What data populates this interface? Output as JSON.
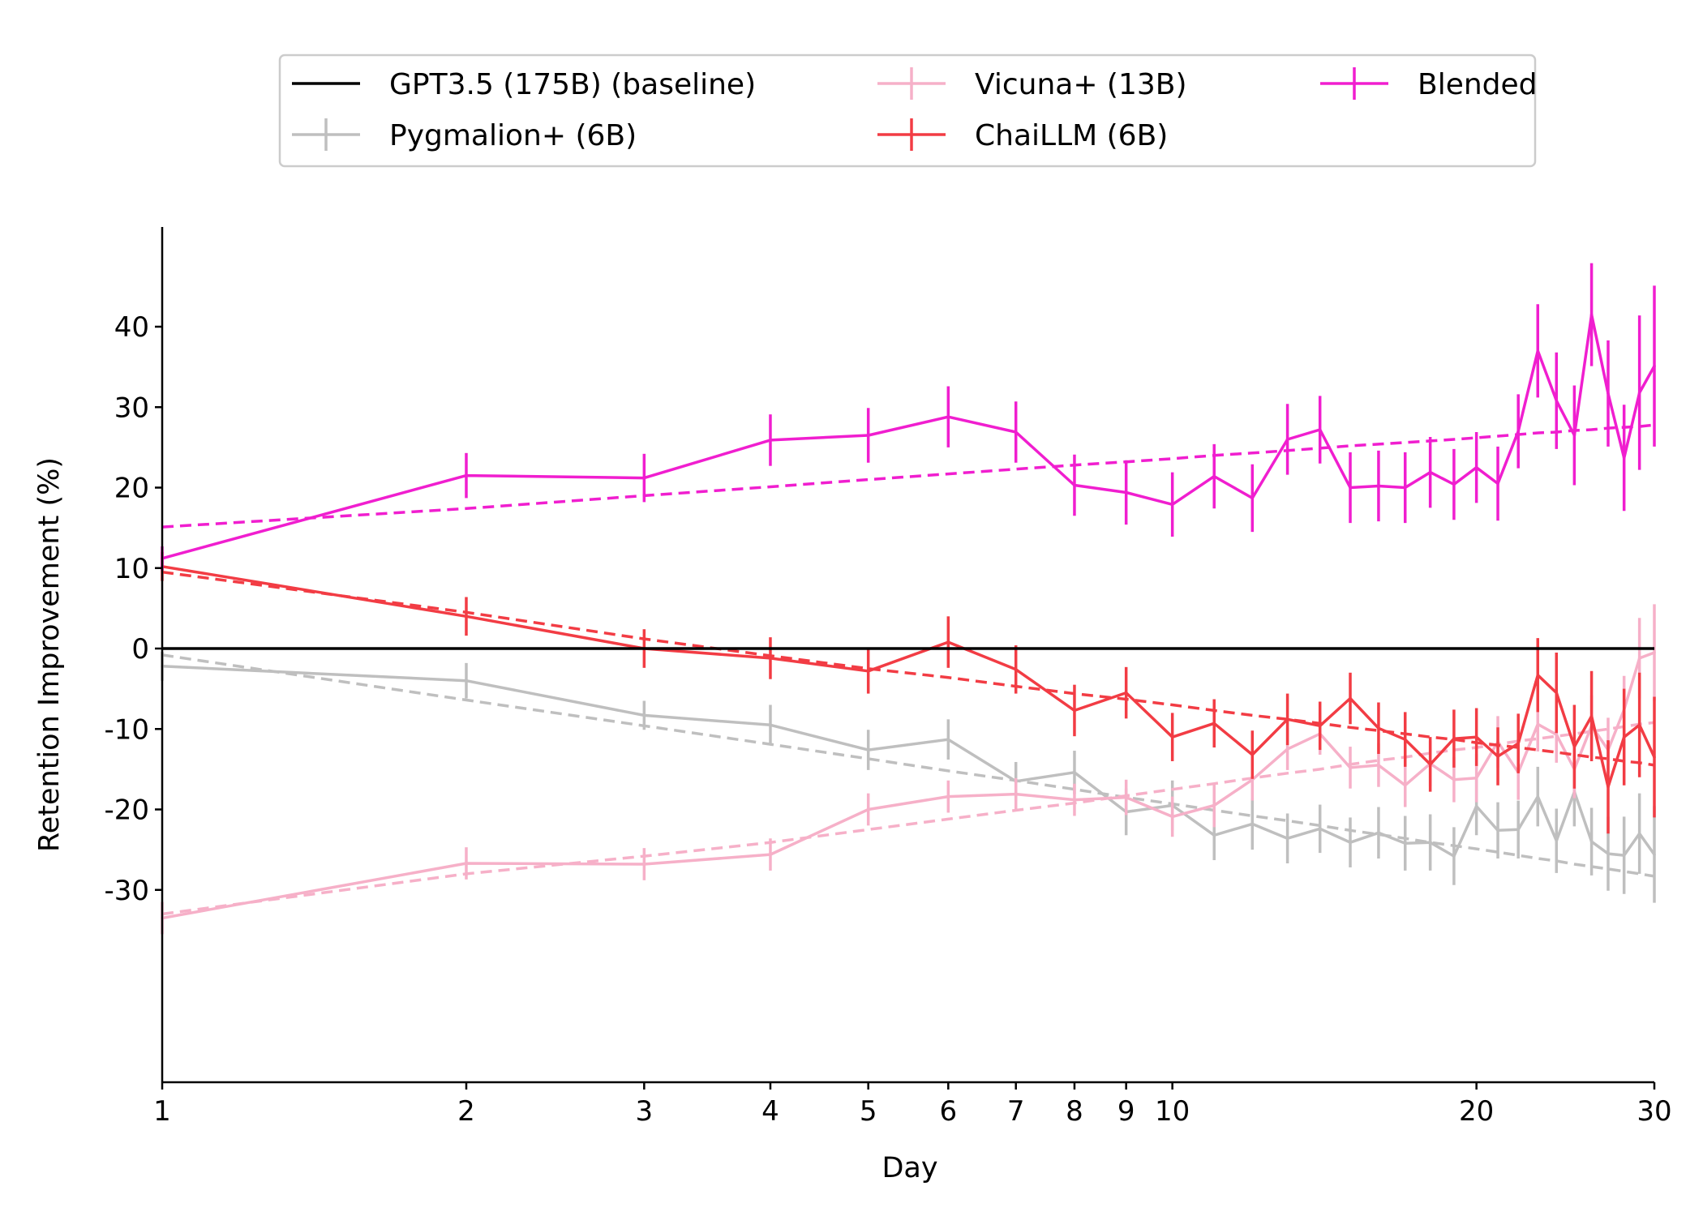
{
  "chart_data": {
    "type": "line",
    "xlabel": "Day",
    "ylabel": "Retention Improvement (%)",
    "x_scale": "log",
    "xlim": [
      1,
      30
    ],
    "ylim": [
      -38,
      50
    ],
    "x_ticks": [
      1,
      2,
      3,
      4,
      5,
      6,
      7,
      8,
      9,
      10,
      20,
      30
    ],
    "y_ticks": [
      -30,
      -20,
      -10,
      0,
      10,
      20,
      30,
      40
    ],
    "legend_position": "top-center",
    "days": [
      1,
      2,
      3,
      4,
      5,
      6,
      7,
      8,
      9,
      10,
      11,
      12,
      13,
      14,
      15,
      16,
      17,
      18,
      19,
      20,
      21,
      22,
      23,
      24,
      25,
      26,
      27,
      28,
      29,
      30
    ],
    "series": [
      {
        "name": "GPT3.5 (175B) (baseline)",
        "color": "#000000",
        "kind": "baseline",
        "x": [
          1,
          30
        ],
        "values": [
          0,
          0
        ]
      },
      {
        "name": "Pygmalion+ (6B)",
        "color": "#bfbfbf",
        "values": [
          -2.2,
          -4.0,
          -8.3,
          -9.5,
          -12.6,
          -11.3,
          -16.5,
          -15.4,
          -20.3,
          -19.5,
          -23.2,
          -21.8,
          -23.6,
          -22.4,
          -24.1,
          -22.9,
          -24.2,
          -24.1,
          -25.8,
          -19.6,
          -22.6,
          -22.5,
          -18.4,
          -23.9,
          -17.8,
          -24.0,
          -25.5,
          -25.7,
          -23.0,
          -25.6
        ],
        "error": [
          1.8,
          2.2,
          1.8,
          2.5,
          2.5,
          2.5,
          2.4,
          2.7,
          2.9,
          3.1,
          3.1,
          3.2,
          3.1,
          3.0,
          3.1,
          3.2,
          3.4,
          3.5,
          3.6,
          3.6,
          3.5,
          3.6,
          3.7,
          4.0,
          4.3,
          4.2,
          4.6,
          4.8,
          5.0,
          6.0
        ],
        "trend": [
          -0.8,
          -6.4,
          -9.6,
          -11.9,
          -13.7,
          -15.2,
          -16.4,
          -17.5,
          -18.5,
          -19.3,
          -20.1,
          -20.8,
          -21.4,
          -22.0,
          -22.6,
          -23.1,
          -23.6,
          -24.1,
          -24.5,
          -24.9,
          -25.3,
          -25.7,
          -26.1,
          -26.4,
          -26.8,
          -27.1,
          -27.4,
          -27.7,
          -28.0,
          -28.3
        ]
      },
      {
        "name": "Vicuna+ (13B)",
        "color": "#f6b0c8",
        "values": [
          -33.5,
          -26.7,
          -26.8,
          -25.6,
          -20.0,
          -18.4,
          -18.1,
          -18.8,
          -18.5,
          -20.9,
          -19.5,
          -16.3,
          -12.5,
          -10.6,
          -14.8,
          -14.5,
          -17.0,
          -14.3,
          -16.3,
          -16.1,
          -11.6,
          -15.4,
          -9.4,
          -10.7,
          -15.0,
          -9.6,
          -12.6,
          -7.6,
          -1.2,
          -0.5
        ],
        "error": [
          2.0,
          2.0,
          2.0,
          2.0,
          2.0,
          2.0,
          2.0,
          2.0,
          2.2,
          2.5,
          2.7,
          2.6,
          2.6,
          2.6,
          2.6,
          2.7,
          2.7,
          2.8,
          2.8,
          3.0,
          3.2,
          3.4,
          3.4,
          3.5,
          3.6,
          3.8,
          4.0,
          4.2,
          5.0,
          6.0
        ],
        "trend": [
          -33.0,
          -28.0,
          -25.8,
          -24.1,
          -22.5,
          -21.2,
          -20.1,
          -19.2,
          -18.3,
          -17.5,
          -16.8,
          -16.1,
          -15.5,
          -15.0,
          -14.4,
          -13.9,
          -13.5,
          -13.0,
          -12.6,
          -12.3,
          -11.9,
          -11.5,
          -11.2,
          -10.9,
          -10.6,
          -10.3,
          -10.0,
          -9.7,
          -9.4,
          -9.2
        ]
      },
      {
        "name": "ChaiLLM (6B)",
        "color": "#f23c44",
        "values": [
          10.2,
          4.0,
          0.0,
          -1.2,
          -2.8,
          0.8,
          -2.6,
          -7.7,
          -5.5,
          -11.0,
          -9.3,
          -13.2,
          -8.8,
          -9.6,
          -6.2,
          -9.9,
          -11.3,
          -14.4,
          -11.2,
          -11.0,
          -13.4,
          -11.8,
          -3.3,
          -5.5,
          -12.2,
          -8.4,
          -17.2,
          -11.0,
          -9.5,
          -13.5
        ],
        "error": [
          1.8,
          2.4,
          2.4,
          2.6,
          2.8,
          3.2,
          3.0,
          3.2,
          3.2,
          3.0,
          3.0,
          3.0,
          3.2,
          3.0,
          3.2,
          3.2,
          3.4,
          3.4,
          3.6,
          3.6,
          3.6,
          3.7,
          4.6,
          5.0,
          5.2,
          5.6,
          5.8,
          6.0,
          6.5,
          7.5
        ],
        "trend": [
          9.5,
          4.5,
          1.2,
          -0.9,
          -2.5,
          -3.6,
          -4.7,
          -5.6,
          -6.3,
          -7.0,
          -7.7,
          -8.3,
          -8.8,
          -9.3,
          -9.8,
          -10.2,
          -10.6,
          -11.0,
          -11.3,
          -11.7,
          -12.0,
          -12.3,
          -12.6,
          -12.9,
          -13.2,
          -13.5,
          -13.7,
          -14.0,
          -14.2,
          -14.5
        ]
      },
      {
        "name": "Blended",
        "color": "#f01ecf",
        "values": [
          11.2,
          21.5,
          21.2,
          25.9,
          26.5,
          28.8,
          26.9,
          20.3,
          19.4,
          17.9,
          21.4,
          18.7,
          26.0,
          27.2,
          20.0,
          20.2,
          20.0,
          21.9,
          20.4,
          22.5,
          20.5,
          27.0,
          37.0,
          30.8,
          26.5,
          41.5,
          31.7,
          23.7,
          31.8,
          35.1
        ],
        "error": [
          1.5,
          2.8,
          3.0,
          3.2,
          3.4,
          3.8,
          3.8,
          3.8,
          4.0,
          4.0,
          4.0,
          4.2,
          4.4,
          4.2,
          4.4,
          4.4,
          4.4,
          4.4,
          4.4,
          4.4,
          4.6,
          4.6,
          5.8,
          6.0,
          6.2,
          6.4,
          6.6,
          6.6,
          9.6,
          10.0
        ],
        "trend": [
          15.1,
          17.4,
          19.0,
          20.1,
          21.0,
          21.7,
          22.3,
          22.8,
          23.2,
          23.6,
          24.0,
          24.3,
          24.6,
          24.9,
          25.2,
          25.4,
          25.6,
          25.8,
          26.0,
          26.2,
          26.4,
          26.6,
          26.8,
          26.9,
          27.1,
          27.2,
          27.4,
          27.5,
          27.6,
          27.8
        ]
      }
    ]
  }
}
